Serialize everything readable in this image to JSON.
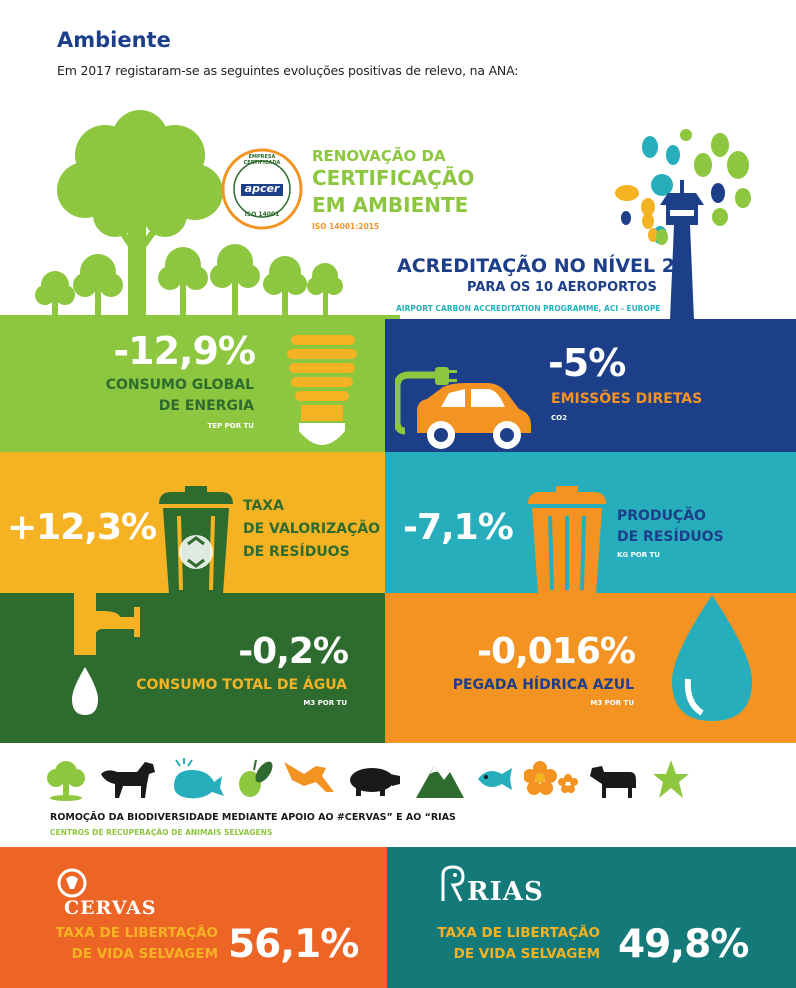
{
  "colors": {
    "green": "#8dc63f",
    "dark_green": "#2e6b2e",
    "navy": "#1d3f8a",
    "yellow": "#f5b323",
    "teal": "#27aebc",
    "orange": "#f39322",
    "deep_orange": "#ec6525",
    "dark_teal": "#137979"
  },
  "header": {
    "title": "Ambiente",
    "intro": "Em 2017 registaram-se as seguintes evoluções positivas de relevo, na ANA:"
  },
  "certification": {
    "badge_top": "EMPRESA CERTIFICADA",
    "badge_logo": "apcer",
    "badge_bottom": "ISO 14001",
    "line1": "RENOVAÇÃO DA",
    "line2": "CERTIFICAÇÃO",
    "line3": "EM AMBIENTE",
    "standard": "ISO 14001:2015"
  },
  "accreditation": {
    "title": "ACREDITAÇÃO NO NÍVEL 2",
    "subtitle": "PARA OS 10 AEROPORTOS",
    "programme": "AIRPORT CARBON ACCREDITATION PROGRAMME, ACI - EUROPE"
  },
  "metrics": {
    "energy": {
      "value": "-12,9%",
      "label1": "CONSUMO GLOBAL",
      "label2": "DE ENERGIA",
      "unit": "TEP POR TU",
      "icon": "light-bulb-icon"
    },
    "emissions": {
      "value": "-5%",
      "label1": "EMISSÕES DIRETAS",
      "unit": "CO2",
      "icon": "electric-car-icon"
    },
    "waste_recovery": {
      "value": "+12,3%",
      "label1": "TAXA",
      "label2": "DE VALORIZAÇÃO",
      "label3": "DE RESÍDUOS",
      "icon": "recycle-bin-icon"
    },
    "waste_production": {
      "value": "-7,1%",
      "label1": "PRODUÇÃO",
      "label2": "DE RESÍDUOS",
      "unit": "KG POR TU",
      "icon": "trash-bin-icon"
    },
    "water": {
      "value": "-0,2%",
      "label1": "CONSUMO TOTAL DE ÁGUA",
      "unit": "M3 POR TU",
      "icon": "water-tap-icon"
    },
    "water_footprint": {
      "value": "-0,016%",
      "label1": "PEGADA HÍDRICA AZUL",
      "unit": "M3 POR TU",
      "icon": "water-drop-icon"
    }
  },
  "biodiversity": {
    "icons": [
      "tree-icon",
      "horse-icon",
      "whale-icon",
      "olive-icon",
      "bird-icon",
      "pig-icon",
      "mountain-icon",
      "fish-icon",
      "flower-icon",
      "cow-icon",
      "starfish-icon"
    ],
    "title": "ROMOÇÃO DA BIODIVERSIDADE MEDIANTE APOIO AO #CERVAS” E AO “RIAS",
    "subtitle": "CENTROS DE RECUPERAÇÃO DE ANIMAIS SELVAGENS"
  },
  "cervas": {
    "logo": "CERVAS",
    "label1": "TAXA DE LIBERTAÇÃO",
    "label2": "DE VIDA SELVAGEM",
    "value": "56,1%"
  },
  "rias": {
    "logo": "RIAS",
    "label1": "TAXA DE LIBERTAÇÃO",
    "label2": "DE VIDA SELVAGEM",
    "value": "49,8%"
  }
}
